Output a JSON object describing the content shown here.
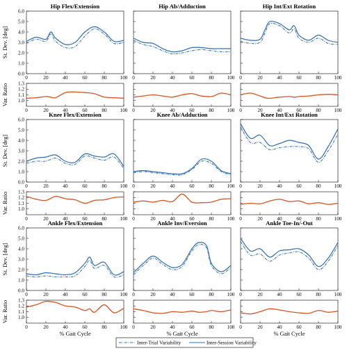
{
  "colors": {
    "sd_line": "#2e6db4",
    "ratio_line": "#d9531e",
    "axis": "#000000"
  },
  "legend": [
    {
      "label": "Inter-Trial Variability",
      "style": "dash-dot"
    },
    {
      "label": "Inter-Session Variability",
      "style": "solid"
    }
  ],
  "chart_data": [
    {
      "type": "line",
      "title": "Hip Flex/Extension",
      "xlabel": "",
      "ylabel": "St. Dev. [deg]",
      "ratio_ylabel": "Var. Ratio",
      "xlim": [
        0,
        100
      ],
      "ylim": [
        0,
        6
      ],
      "ratio_ylim": [
        0.9,
        1.3
      ],
      "x": [
        0,
        10,
        20,
        25,
        30,
        40,
        50,
        60,
        70,
        80,
        90,
        100
      ],
      "series": [
        {
          "name": "Inter-Session Variability",
          "values": [
            3.1,
            3.5,
            3.3,
            4.0,
            3.4,
            2.8,
            3.0,
            4.0,
            4.5,
            4.0,
            3.1,
            3.2
          ]
        },
        {
          "name": "Inter-Trial Variability",
          "values": [
            2.9,
            3.3,
            3.1,
            3.8,
            3.1,
            2.5,
            2.6,
            3.6,
            4.3,
            3.8,
            2.9,
            3.0
          ]
        }
      ],
      "ratio": [
        1.04,
        1.05,
        1.07,
        1.06,
        1.05,
        1.14,
        1.15,
        1.14,
        1.12,
        1.06,
        1.05,
        1.04
      ]
    },
    {
      "type": "line",
      "title": "Hip Ab/Adduction",
      "xlabel": "",
      "ylabel": "",
      "ratio_ylabel": "",
      "xlim": [
        0,
        100
      ],
      "ylim": [
        0,
        6
      ],
      "ratio_ylim": [
        0.9,
        1.3
      ],
      "x": [
        0,
        10,
        20,
        30,
        40,
        50,
        60,
        70,
        80,
        90,
        100
      ],
      "series": [
        {
          "name": "Inter-Session Variability",
          "values": [
            3.4,
            3.0,
            2.9,
            2.4,
            2.1,
            2.2,
            2.5,
            2.5,
            2.4,
            2.4,
            2.4
          ]
        },
        {
          "name": "Inter-Trial Variability",
          "values": [
            3.2,
            2.8,
            2.6,
            2.2,
            1.9,
            2.0,
            2.2,
            2.3,
            2.2,
            2.1,
            2.1
          ]
        }
      ],
      "ratio": [
        1.06,
        1.08,
        1.1,
        1.08,
        1.06,
        1.1,
        1.12,
        1.08,
        1.07,
        1.13,
        1.1
      ]
    },
    {
      "type": "line",
      "title": "Hip Int/Ext Rotation",
      "xlabel": "",
      "ylabel": "",
      "ratio_ylabel": "",
      "xlim": [
        0,
        100
      ],
      "ylim": [
        0,
        6
      ],
      "ratio_ylim": [
        0.9,
        1.3
      ],
      "x": [
        0,
        10,
        20,
        25,
        30,
        40,
        50,
        55,
        60,
        70,
        80,
        90,
        100
      ],
      "series": [
        {
          "name": "Inter-Session Variability",
          "values": [
            3.4,
            3.2,
            3.3,
            4.2,
            5.0,
            4.8,
            4.2,
            4.6,
            3.7,
            3.2,
            3.7,
            3.2,
            3.0
          ]
        },
        {
          "name": "Inter-Trial Variability",
          "values": [
            3.1,
            2.9,
            3.0,
            3.9,
            4.8,
            4.6,
            3.9,
            4.3,
            3.4,
            3.0,
            3.4,
            2.9,
            2.8
          ]
        }
      ],
      "ratio": [
        1.1,
        1.13,
        1.08,
        1.05,
        1.04,
        1.06,
        1.07,
        1.06,
        1.07,
        1.08,
        1.1,
        1.11,
        1.1
      ]
    },
    {
      "type": "line",
      "title": "Knee Flex/Extension",
      "xlabel": "",
      "ylabel": "St. Dev. [deg]",
      "ratio_ylabel": "Var. Ratio",
      "xlim": [
        0,
        100
      ],
      "ylim": [
        0,
        6
      ],
      "ratio_ylim": [
        0.9,
        1.3
      ],
      "x": [
        0,
        10,
        20,
        30,
        40,
        50,
        60,
        70,
        80,
        90,
        100
      ],
      "series": [
        {
          "name": "Inter-Session Variability",
          "values": [
            2.0,
            2.3,
            2.4,
            2.6,
            2.0,
            1.9,
            2.7,
            2.5,
            2.4,
            2.7,
            1.5
          ]
        },
        {
          "name": "Inter-Trial Variability",
          "values": [
            1.8,
            2.0,
            2.0,
            2.3,
            1.8,
            1.7,
            2.5,
            2.3,
            2.1,
            2.4,
            1.3
          ]
        }
      ],
      "ratio": [
        1.22,
        1.17,
        1.15,
        1.22,
        1.18,
        1.16,
        1.1,
        1.15,
        1.16,
        1.2,
        1.21
      ]
    },
    {
      "type": "line",
      "title": "Knee Ab/Adduction",
      "xlabel": "",
      "ylabel": "",
      "ratio_ylabel": "",
      "xlim": [
        0,
        100
      ],
      "ylim": [
        0,
        6
      ],
      "ratio_ylim": [
        0.9,
        1.3
      ],
      "x": [
        0,
        10,
        20,
        30,
        40,
        50,
        60,
        70,
        80,
        90,
        100
      ],
      "series": [
        {
          "name": "Inter-Session Variability",
          "values": [
            1.0,
            1.1,
            1.0,
            0.9,
            0.8,
            0.8,
            1.3,
            2.2,
            2.0,
            1.1,
            0.8
          ]
        },
        {
          "name": "Inter-Trial Variability",
          "values": [
            0.9,
            1.0,
            0.9,
            0.8,
            0.7,
            0.7,
            1.2,
            2.0,
            1.8,
            1.0,
            0.7
          ]
        }
      ],
      "ratio": [
        1.12,
        1.14,
        1.12,
        1.15,
        1.13,
        1.26,
        1.12,
        1.11,
        1.12,
        1.17,
        1.18
      ]
    },
    {
      "type": "line",
      "title": "Knee Int/Ext Rotation",
      "xlabel": "",
      "ylabel": "",
      "ratio_ylabel": "",
      "xlim": [
        0,
        100
      ],
      "ylim": [
        0,
        6
      ],
      "ratio_ylim": [
        0.9,
        1.3
      ],
      "x": [
        0,
        10,
        20,
        30,
        40,
        50,
        60,
        70,
        80,
        90,
        100
      ],
      "series": [
        {
          "name": "Inter-Session Variability",
          "values": [
            5.6,
            4.2,
            4.5,
            3.5,
            3.7,
            4.0,
            3.8,
            3.5,
            2.2,
            3.4,
            5.1
          ]
        },
        {
          "name": "Inter-Trial Variability",
          "values": [
            5.3,
            3.8,
            3.8,
            3.1,
            3.3,
            3.4,
            3.4,
            3.2,
            1.9,
            3.0,
            4.6
          ]
        }
      ],
      "ratio": [
        1.08,
        1.1,
        1.09,
        1.14,
        1.17,
        1.13,
        1.14,
        1.09,
        1.11,
        1.08,
        1.1
      ]
    },
    {
      "type": "line",
      "title": "Ankle Flex/Extension",
      "xlabel": "% Gait Cycle",
      "ylabel": "St. Dev. [deg]",
      "ratio_ylabel": "Var. Ratio",
      "xlim": [
        0,
        100
      ],
      "ylim": [
        0,
        6
      ],
      "ratio_ylim": [
        0.9,
        1.3
      ],
      "x": [
        0,
        10,
        20,
        30,
        40,
        50,
        60,
        65,
        70,
        80,
        90,
        100
      ],
      "series": [
        {
          "name": "Inter-Session Variability",
          "values": [
            1.6,
            1.5,
            1.7,
            1.6,
            1.5,
            1.7,
            2.6,
            3.2,
            2.4,
            2.7,
            1.5,
            1.8
          ]
        },
        {
          "name": "Inter-Trial Variability",
          "values": [
            1.4,
            1.3,
            1.4,
            1.3,
            1.3,
            1.4,
            2.3,
            2.9,
            2.1,
            2.4,
            1.3,
            1.5
          ]
        }
      ],
      "ratio": [
        1.18,
        1.22,
        1.28,
        1.26,
        1.2,
        1.18,
        1.12,
        1.15,
        1.09,
        1.22,
        1.08,
        1.16
      ]
    },
    {
      "type": "line",
      "title": "Ankle Inv/Eversion",
      "xlabel": "% Gait Cycle",
      "ylabel": "",
      "ratio_ylabel": "",
      "xlim": [
        0,
        100
      ],
      "ylim": [
        0,
        6
      ],
      "ratio_ylim": [
        0.9,
        1.3
      ],
      "x": [
        0,
        10,
        20,
        30,
        40,
        50,
        60,
        67,
        75,
        80,
        90,
        100
      ],
      "series": [
        {
          "name": "Inter-Session Variability",
          "values": [
            1.7,
            2.6,
            3.3,
            2.7,
            2.2,
            2.5,
            4.0,
            4.6,
            4.3,
            2.6,
            1.8,
            2.4
          ]
        },
        {
          "name": "Inter-Trial Variability",
          "values": [
            1.5,
            2.4,
            3.1,
            2.5,
            2.0,
            2.3,
            3.8,
            4.4,
            4.1,
            2.4,
            1.6,
            2.2
          ]
        }
      ],
      "ratio": [
        1.15,
        1.12,
        1.08,
        1.07,
        1.1,
        1.09,
        1.11,
        1.09,
        1.1,
        1.12,
        1.1,
        1.13
      ]
    },
    {
      "type": "line",
      "title": "Ankle Toe-In/-Out",
      "xlabel": "% Gait Cycle",
      "ylabel": "",
      "ratio_ylabel": "",
      "xlim": [
        0,
        100
      ],
      "ylim": [
        0,
        6
      ],
      "ratio_ylim": [
        0.9,
        1.3
      ],
      "x": [
        0,
        10,
        20,
        30,
        40,
        50,
        60,
        70,
        80,
        90,
        100
      ],
      "series": [
        {
          "name": "Inter-Session Variability",
          "values": [
            5.0,
            3.8,
            4.0,
            3.2,
            3.8,
            3.9,
            4.0,
            3.4,
            2.3,
            3.1,
            4.6
          ]
        },
        {
          "name": "Inter-Trial Variability",
          "values": [
            4.7,
            3.4,
            3.5,
            2.8,
            3.4,
            3.6,
            3.7,
            3.1,
            2.0,
            2.8,
            4.3
          ]
        }
      ],
      "ratio": [
        1.08,
        1.06,
        1.1,
        1.15,
        1.13,
        1.1,
        1.08,
        1.07,
        1.12,
        1.09,
        1.11
      ]
    }
  ]
}
